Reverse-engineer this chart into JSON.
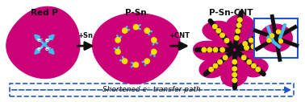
{
  "bg_color": "#ffffff",
  "magenta": "#cc0077",
  "magenta_light": "#dd1188",
  "magenta_dark": "#aa0066",
  "cyan": "#44bbee",
  "yellow": "#ffdd00",
  "black": "#111111",
  "blue_box": "#2255cc",
  "arrow_color": "#111111",
  "dashed_arrow_color": "#2255cc",
  "label_red_p": "Red P",
  "label_p_sn": "P-Sn",
  "label_p_sn_cnt": "P-Sn-CNT",
  "label_sn": "+Sn",
  "label_cnt": "+CNT",
  "label_bottom": "Shortened e⁻ transfer path",
  "label_e": "e⁻",
  "fig_width": 3.78,
  "fig_height": 1.27,
  "title_fontsize": 7.5,
  "small_fontsize": 6.0,
  "label_fontsize": 6.5
}
